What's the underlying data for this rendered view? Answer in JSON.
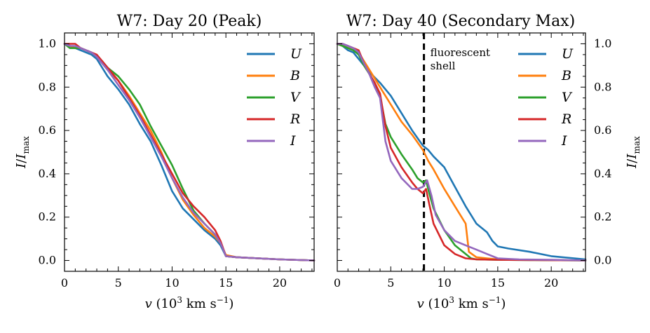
{
  "chart_data": [
    {
      "type": "line",
      "title": "W7: Day 20 (Peak)",
      "xlabel": "v (10^3 km s^-1)",
      "ylabel": "I/I_max",
      "xlim": [
        0,
        23.2
      ],
      "ylim": [
        -0.05,
        1.05
      ],
      "xticks": [
        "0",
        "5",
        "10",
        "15",
        "20"
      ],
      "yticks": [
        "0.0",
        "0.2",
        "0.4",
        "0.6",
        "0.8",
        "1.0"
      ],
      "ytick_side": "left",
      "legend": "top-right",
      "series": [
        {
          "name": "U",
          "color": "#1f77b4",
          "x": [
            0,
            0.5,
            1,
            1.5,
            2,
            2.5,
            3,
            3.5,
            4,
            5,
            6,
            7,
            8,
            9,
            10,
            11,
            12,
            13,
            14,
            14.5,
            15,
            16,
            18,
            20,
            23.2
          ],
          "y": [
            1.0,
            0.99,
            0.98,
            0.97,
            0.96,
            0.95,
            0.93,
            0.89,
            0.85,
            0.79,
            0.72,
            0.63,
            0.55,
            0.44,
            0.32,
            0.24,
            0.19,
            0.14,
            0.1,
            0.07,
            0.02,
            0.015,
            0.01,
            0.005,
            0.0
          ]
        },
        {
          "name": "B",
          "color": "#ff7f0e",
          "x": [
            0,
            0.5,
            1,
            1.5,
            2,
            2.5,
            3,
            3.5,
            4,
            5,
            6,
            7,
            8,
            9,
            10,
            11,
            12,
            13,
            14,
            14.5,
            15,
            16,
            18,
            20,
            23.2
          ],
          "y": [
            1.0,
            0.99,
            0.98,
            0.98,
            0.97,
            0.96,
            0.94,
            0.91,
            0.88,
            0.83,
            0.76,
            0.68,
            0.6,
            0.5,
            0.38,
            0.28,
            0.21,
            0.15,
            0.11,
            0.08,
            0.025,
            0.015,
            0.01,
            0.005,
            0.0
          ]
        },
        {
          "name": "V",
          "color": "#2ca02c",
          "x": [
            0,
            0.5,
            1,
            1.5,
            2,
            2.5,
            3,
            3.5,
            4,
            5,
            6,
            7,
            8,
            9,
            10,
            11,
            12,
            13,
            14,
            14.5,
            15,
            16,
            18,
            20,
            23.2
          ],
          "y": [
            1.0,
            0.98,
            0.98,
            0.98,
            0.97,
            0.96,
            0.94,
            0.92,
            0.89,
            0.85,
            0.79,
            0.72,
            0.62,
            0.53,
            0.44,
            0.33,
            0.23,
            0.17,
            0.12,
            0.08,
            0.02,
            0.015,
            0.01,
            0.005,
            0.0
          ]
        },
        {
          "name": "R",
          "color": "#d62728",
          "x": [
            0,
            0.5,
            1,
            1.5,
            2,
            2.5,
            3,
            3.5,
            4,
            5,
            6,
            7,
            8,
            9,
            10,
            11,
            12,
            13,
            14,
            14.5,
            15,
            16,
            18,
            20,
            23.2
          ],
          "y": [
            1.0,
            1.0,
            1.0,
            0.98,
            0.97,
            0.96,
            0.95,
            0.92,
            0.89,
            0.83,
            0.75,
            0.67,
            0.58,
            0.49,
            0.4,
            0.31,
            0.25,
            0.2,
            0.14,
            0.09,
            0.02,
            0.015,
            0.01,
            0.005,
            0.0
          ]
        },
        {
          "name": "I",
          "color": "#9467bd",
          "x": [
            0,
            0.5,
            1,
            1.5,
            2,
            2.5,
            3,
            3.5,
            4,
            5,
            6,
            7,
            8,
            9,
            10,
            11,
            12,
            13,
            14,
            14.5,
            15,
            16,
            18,
            20,
            23.2
          ],
          "y": [
            1.0,
            0.99,
            0.99,
            0.98,
            0.97,
            0.96,
            0.94,
            0.91,
            0.88,
            0.81,
            0.74,
            0.66,
            0.57,
            0.48,
            0.38,
            0.29,
            0.22,
            0.17,
            0.12,
            0.08,
            0.02,
            0.015,
            0.01,
            0.005,
            0.0
          ]
        }
      ]
    },
    {
      "type": "line",
      "title": "W7: Day 40 (Secondary Max)",
      "xlabel": "v (10^3 km s^-1)",
      "ylabel": "I/I_max",
      "xlim": [
        0,
        23.2
      ],
      "ylim": [
        -0.05,
        1.05
      ],
      "xticks": [
        "0",
        "5",
        "10",
        "15",
        "20"
      ],
      "yticks": [
        "0.0",
        "0.2",
        "0.4",
        "0.6",
        "0.8",
        "1.0"
      ],
      "ytick_side": "right",
      "legend": "top-right",
      "annotation": {
        "text_line1": "fluorescent",
        "text_line2": "shell",
        "x": 8.1
      },
      "series": [
        {
          "name": "U",
          "color": "#1f77b4",
          "x": [
            0,
            0.5,
            1,
            1.5,
            2,
            2.5,
            3,
            4,
            5,
            6,
            7,
            8,
            8.5,
            9,
            10,
            11,
            12,
            13,
            14,
            14.5,
            15,
            16,
            18,
            20,
            23.2
          ],
          "y": [
            1.0,
            0.99,
            0.97,
            0.96,
            0.93,
            0.9,
            0.87,
            0.82,
            0.76,
            0.68,
            0.6,
            0.53,
            0.51,
            0.48,
            0.43,
            0.34,
            0.25,
            0.17,
            0.13,
            0.09,
            0.065,
            0.055,
            0.04,
            0.02,
            0.005
          ]
        },
        {
          "name": "B",
          "color": "#ff7f0e",
          "x": [
            0,
            0.5,
            1,
            1.5,
            2,
            2.5,
            3,
            4,
            5,
            6,
            7,
            8,
            8.5,
            9,
            10,
            11,
            12,
            12.3,
            13,
            14,
            15,
            16,
            18,
            20,
            23.2
          ],
          "y": [
            1.0,
            0.99,
            0.98,
            0.97,
            0.96,
            0.92,
            0.88,
            0.8,
            0.72,
            0.64,
            0.58,
            0.51,
            0.46,
            0.42,
            0.33,
            0.25,
            0.17,
            0.04,
            0.015,
            0.01,
            0.005,
            0.005,
            0.003,
            0.002,
            0.0
          ]
        },
        {
          "name": "V",
          "color": "#2ca02c",
          "x": [
            0,
            0.5,
            1,
            1.5,
            2,
            2.5,
            3,
            3.5,
            4,
            4.5,
            5,
            6,
            7,
            7.5,
            8,
            8.3,
            8.6,
            9,
            10,
            11,
            12,
            12.5,
            13,
            15,
            18,
            23.2
          ],
          "y": [
            1.0,
            0.99,
            0.98,
            0.97,
            0.95,
            0.9,
            0.86,
            0.82,
            0.76,
            0.63,
            0.57,
            0.49,
            0.42,
            0.38,
            0.36,
            0.37,
            0.31,
            0.24,
            0.14,
            0.07,
            0.03,
            0.01,
            0.005,
            0.003,
            0.002,
            0.0
          ]
        },
        {
          "name": "R",
          "color": "#d62728",
          "x": [
            0,
            0.5,
            1,
            1.5,
            2,
            2.5,
            3,
            3.5,
            4,
            4.5,
            5,
            6,
            7,
            7.5,
            8,
            8.3,
            8.6,
            9,
            10,
            11,
            12,
            13,
            15,
            18,
            23.2
          ],
          "y": [
            1.0,
            1.0,
            0.99,
            0.98,
            0.97,
            0.91,
            0.86,
            0.82,
            0.77,
            0.62,
            0.52,
            0.43,
            0.36,
            0.33,
            0.31,
            0.33,
            0.26,
            0.17,
            0.07,
            0.03,
            0.01,
            0.005,
            0.003,
            0.002,
            0.0
          ]
        },
        {
          "name": "I",
          "color": "#9467bd",
          "x": [
            0,
            0.5,
            1,
            1.5,
            2,
            2.5,
            3,
            3.5,
            4,
            4.5,
            5,
            6,
            7,
            7.5,
            8,
            8.4,
            8.8,
            9.2,
            10,
            11,
            12,
            13,
            14,
            15,
            17,
            20,
            23.2
          ],
          "y": [
            1.0,
            1.0,
            0.99,
            0.98,
            0.96,
            0.91,
            0.86,
            0.8,
            0.75,
            0.55,
            0.46,
            0.38,
            0.33,
            0.33,
            0.34,
            0.37,
            0.3,
            0.21,
            0.14,
            0.09,
            0.07,
            0.05,
            0.03,
            0.01,
            0.005,
            0.003,
            0.0
          ]
        }
      ]
    }
  ]
}
